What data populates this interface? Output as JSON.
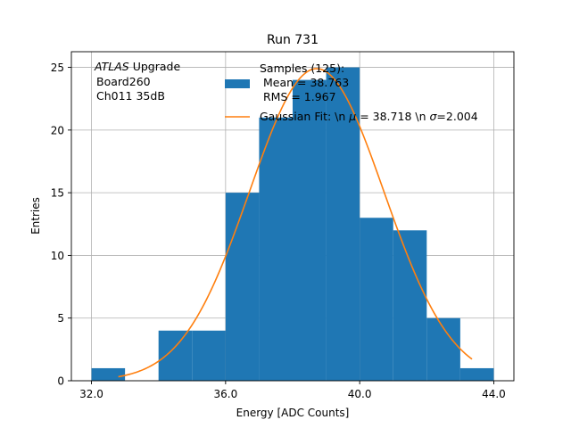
{
  "chart_data": {
    "type": "bar",
    "title": "Run 731",
    "xlabel": "Energy [ADC Counts]",
    "ylabel": "Entries",
    "xlim": [
      31.4,
      44.6
    ],
    "ylim": [
      0,
      26.25
    ],
    "grid": true,
    "xticks": [
      32,
      36,
      40,
      44
    ],
    "xtick_labels": [
      "32.0",
      "36.0",
      "40.0",
      "44.0"
    ],
    "yticks": [
      0,
      5,
      10,
      15,
      20,
      25
    ],
    "ytick_labels": [
      "0",
      "5",
      "10",
      "15",
      "20",
      "25"
    ],
    "bar_color": "#1f77b4",
    "fit_color": "#ff7f0e",
    "histogram": {
      "bin_edges": [
        32,
        33,
        34,
        35,
        36,
        37,
        38,
        39,
        40,
        41,
        42,
        43,
        44
      ],
      "counts": [
        1,
        0,
        4,
        4,
        15,
        21,
        24,
        25,
        13,
        12,
        5,
        1
      ]
    },
    "fit": {
      "type": "gaussian",
      "mu": 38.718,
      "sigma": 2.004,
      "amplitude": 24.9,
      "x_range": [
        32.8,
        43.35
      ]
    },
    "annotation_lines": [
      "ATLAS",
      " Upgrade",
      "Board260",
      "Ch011 35dB"
    ],
    "legend": {
      "placement": "top-right",
      "histogram_label_lines": [
        "Samples (125):",
        " Mean = 38.763",
        " RMS = 1.967"
      ],
      "fit_label_parts": [
        "Gaussian Fit: \\n ",
        "μ",
        " = 38.718 \\n ",
        "σ",
        "=2.004"
      ]
    }
  }
}
